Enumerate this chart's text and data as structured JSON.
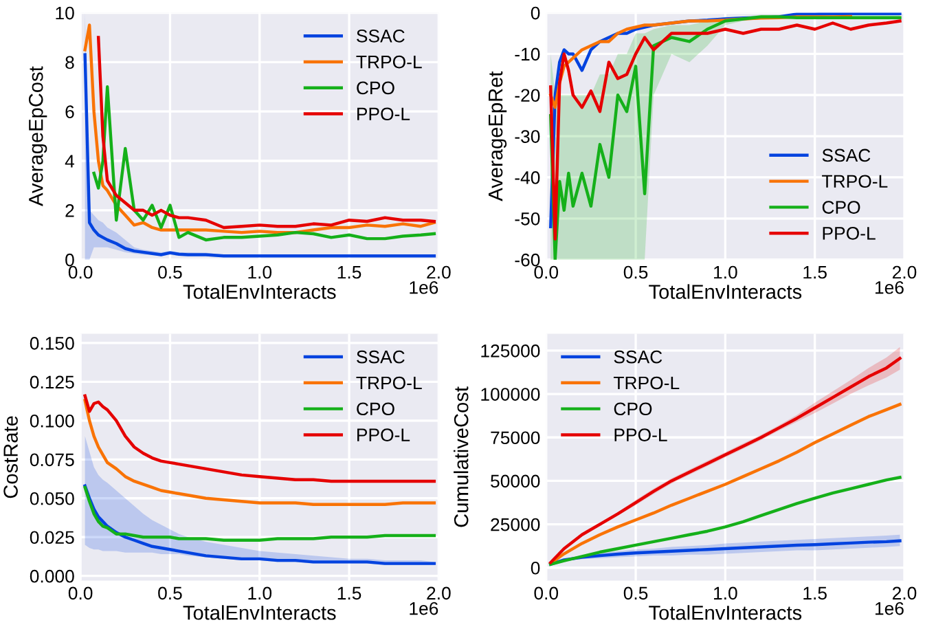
{
  "chart_data": [
    {
      "type": "line",
      "xlabel": "TotalEnvInteracts",
      "ylabel": "AverageEpCost",
      "annotations": [
        "1e6"
      ],
      "x": [
        0.025,
        0.05,
        0.075,
        0.1,
        0.125,
        0.15,
        0.2,
        0.25,
        0.3,
        0.35,
        0.4,
        0.45,
        0.5,
        0.55,
        0.6,
        0.7,
        0.8,
        0.9,
        1.0,
        1.1,
        1.2,
        1.3,
        1.4,
        1.5,
        1.6,
        1.7,
        1.8,
        1.9,
        1.975
      ],
      "xlim": [
        0,
        2.0
      ],
      "xticks": [
        {
          "value": 0,
          "label": "0.0"
        },
        {
          "value": 0.5,
          "label": "0.5"
        },
        {
          "value": 1,
          "label": "1.0"
        },
        {
          "value": 1.5,
          "label": "1.5"
        },
        {
          "value": 2,
          "label": "2.0"
        }
      ],
      "ylim": [
        0,
        10
      ],
      "yticks": [
        0,
        2,
        4,
        6,
        8,
        10
      ],
      "grid": true,
      "legend": "top right",
      "series": [
        {
          "name": "SSAC",
          "color": "#0343df",
          "values": [
            8.3,
            1.5,
            1.2,
            1.0,
            0.9,
            0.8,
            0.65,
            0.45,
            0.35,
            0.3,
            0.25,
            0.2,
            0.28,
            0.22,
            0.2,
            0.2,
            0.15,
            0.15,
            0.15,
            0.15,
            0.15,
            0.15,
            0.15,
            0.15,
            0.15,
            0.15,
            0.15,
            0.15,
            0.15
          ],
          "lower": [
            0,
            0,
            0.5,
            0.5,
            0.5,
            0.5,
            0.4,
            0.3,
            0.25,
            0.2,
            0.2,
            0.15,
            0.2,
            0.15,
            0.15,
            0.15,
            0.1,
            0.1,
            0.1,
            0.1,
            0.1,
            0.1,
            0.1,
            0.1,
            0.1,
            0.1,
            0.1,
            0.1,
            0.1
          ],
          "upper": [
            10,
            2,
            1.8,
            1.6,
            1.5,
            1.3,
            1.1,
            0.8,
            0.5,
            0.4,
            0.35,
            0.3,
            0.35,
            0.3,
            0.3,
            0.28,
            0.2,
            0.2,
            0.2,
            0.2,
            0.2,
            0.2,
            0.2,
            0.2,
            0.2,
            0.2,
            0.2,
            0.2,
            0.2
          ]
        },
        {
          "name": "TRPO-L",
          "color": "#f97306",
          "values": [
            8.5,
            9.5,
            6.0,
            4.0,
            3.0,
            2.8,
            2.2,
            1.8,
            1.4,
            1.5,
            1.3,
            1.2,
            1.2,
            1.2,
            1.2,
            1.2,
            1.15,
            1.1,
            1.15,
            1.1,
            1.1,
            1.2,
            1.3,
            1.3,
            1.4,
            1.35,
            1.45,
            1.35,
            1.5
          ]
        },
        {
          "name": "CPO",
          "color": "#15b01a",
          "values": [
            null,
            null,
            3.5,
            2.9,
            4.0,
            7.0,
            1.6,
            4.5,
            2.0,
            1.6,
            2.2,
            1.3,
            2.2,
            0.9,
            1.1,
            0.8,
            0.9,
            0.9,
            0.95,
            1.0,
            1.1,
            1.05,
            0.9,
            1.0,
            0.85,
            0.85,
            0.95,
            1.0,
            1.05
          ]
        },
        {
          "name": "PPO-L",
          "color": "#e50000",
          "values": [
            null,
            null,
            null,
            9.0,
            5.0,
            3.2,
            2.6,
            2.3,
            2.0,
            2.0,
            1.8,
            2.0,
            1.8,
            1.7,
            1.7,
            1.6,
            1.3,
            1.35,
            1.4,
            1.35,
            1.35,
            1.45,
            1.4,
            1.6,
            1.55,
            1.7,
            1.6,
            1.6,
            1.55
          ]
        }
      ]
    },
    {
      "type": "line",
      "xlabel": "TotalEnvInteracts",
      "ylabel": "AverageEpRet",
      "annotations": [
        "1e6"
      ],
      "x": [
        0.025,
        0.05,
        0.075,
        0.1,
        0.125,
        0.15,
        0.2,
        0.25,
        0.3,
        0.35,
        0.4,
        0.45,
        0.5,
        0.55,
        0.6,
        0.7,
        0.8,
        0.9,
        1.0,
        1.1,
        1.2,
        1.3,
        1.4,
        1.5,
        1.6,
        1.7,
        1.8,
        1.9,
        1.975
      ],
      "xlim": [
        0,
        2.0
      ],
      "xticks": [
        {
          "value": 0,
          "label": "0.0"
        },
        {
          "value": 0.5,
          "label": "0.5"
        },
        {
          "value": 1,
          "label": "1.0"
        },
        {
          "value": 1.5,
          "label": "1.5"
        },
        {
          "value": 2,
          "label": "2.0"
        }
      ],
      "ylim": [
        -60,
        0
      ],
      "yticks": [
        -60,
        -50,
        -40,
        -30,
        -20,
        -10,
        0
      ],
      "grid": true,
      "legend": "bottom right",
      "series": [
        {
          "name": "SSAC",
          "color": "#0343df",
          "values": [
            -52,
            -20,
            -12,
            -9,
            -10,
            -10,
            -14,
            -9,
            -7,
            -6,
            -5,
            -5,
            -4,
            -3.5,
            -3,
            -2.5,
            -2,
            -1.8,
            -1.5,
            -1.3,
            -1.2,
            -1,
            -0.3,
            -0.3,
            -0.2,
            -0.2,
            -0.2,
            -0.2,
            -0.2
          ]
        },
        {
          "name": "TRPO-L",
          "color": "#f97306",
          "values": [
            -20,
            -23,
            -17,
            -13,
            -12,
            -11,
            -9,
            -8,
            -7,
            -7,
            -5,
            -4,
            -3.5,
            -3,
            -3,
            -2.5,
            -2,
            -2,
            -1.8,
            -1.5,
            -1.3,
            -1.2,
            -1,
            -1,
            -1,
            -0.9,
            null,
            null,
            null
          ]
        },
        {
          "name": "CPO",
          "color": "#15b01a",
          "values": [
            -25,
            -60,
            -41,
            -48,
            -39,
            -47,
            -39,
            -47,
            -32,
            -40,
            -20,
            -24,
            -13,
            -44,
            -8,
            -6,
            -7,
            -4,
            -2,
            -1.5,
            -1,
            -1,
            -1.2,
            -1.2,
            -1.2,
            -1.2,
            -1.2,
            -1.2,
            -1.2
          ],
          "lower": [
            -60,
            -60,
            -60,
            -60,
            -60,
            -60,
            -60,
            -60,
            -60,
            -60,
            -60,
            -60,
            -60,
            -60,
            -20,
            -10,
            -12,
            -8,
            -3,
            -2,
            -1.5,
            -1.2,
            -1.2,
            -1,
            -1,
            -1,
            -1,
            -1,
            -1
          ],
          "upper": [
            -10,
            -20,
            -20,
            -20,
            -20,
            -20,
            -20,
            -20,
            -15,
            -15,
            -10,
            -10,
            -5,
            -5,
            -4,
            -3,
            -3,
            -2,
            -1,
            -1,
            -0.5,
            -0.5,
            -0.5,
            -0.5,
            -0.5,
            -0.5,
            -0.5,
            -0.5,
            -0.5
          ]
        },
        {
          "name": "PPO-L",
          "color": "#e50000",
          "values": [
            -18,
            -55,
            -17,
            -10,
            -14,
            -20,
            -23,
            -19,
            -24,
            -12,
            -16,
            -15,
            -10,
            -6,
            -9,
            -5,
            -5,
            -5,
            -4,
            -5,
            -4,
            -4,
            -3,
            -4,
            -2.5,
            -4,
            -3,
            -2.5,
            -2
          ]
        }
      ]
    },
    {
      "type": "line",
      "xlabel": "TotalEnvInteracts",
      "ylabel": "CostRate",
      "annotations": [
        "1e6"
      ],
      "x": [
        0.025,
        0.05,
        0.075,
        0.1,
        0.125,
        0.15,
        0.2,
        0.25,
        0.3,
        0.35,
        0.4,
        0.45,
        0.5,
        0.55,
        0.6,
        0.7,
        0.8,
        0.9,
        1.0,
        1.1,
        1.2,
        1.3,
        1.4,
        1.5,
        1.6,
        1.7,
        1.8,
        1.9,
        1.975
      ],
      "xlim": [
        0,
        2.0
      ],
      "xticks": [
        {
          "value": 0,
          "label": "0.0"
        },
        {
          "value": 0.5,
          "label": "0.5"
        },
        {
          "value": 1,
          "label": "1.0"
        },
        {
          "value": 1.5,
          "label": "1.5"
        },
        {
          "value": 2,
          "label": "2.0"
        }
      ],
      "ylim": [
        -0.003,
        0.156
      ],
      "yticks": [
        {
          "value": 0,
          "label": "0.000"
        },
        {
          "value": 0.025,
          "label": "0.025"
        },
        {
          "value": 0.05,
          "label": "0.050"
        },
        {
          "value": 0.075,
          "label": "0.075"
        },
        {
          "value": 0.1,
          "label": "0.100"
        },
        {
          "value": 0.125,
          "label": "0.125"
        },
        {
          "value": 0.15,
          "label": "0.150"
        }
      ],
      "grid": true,
      "legend": "top right",
      "series": [
        {
          "name": "SSAC",
          "color": "#0343df",
          "values": [
            0.058,
            0.05,
            0.043,
            0.038,
            0.035,
            0.032,
            0.028,
            0.025,
            0.023,
            0.021,
            0.019,
            0.018,
            0.017,
            0.016,
            0.015,
            0.013,
            0.012,
            0.011,
            0.011,
            0.01,
            0.01,
            0.009,
            0.009,
            0.009,
            0.009,
            0.008,
            0.008,
            0.008,
            0.008
          ],
          "lower": [
            0.02,
            0.018,
            0.017,
            0.017,
            0.016,
            0.016,
            0.016,
            0.015,
            0.015,
            0.015,
            0.015,
            0.014,
            0.014,
            0.014,
            0.013,
            0.012,
            0.011,
            0.01,
            0.01,
            0.009,
            0.009,
            0.008,
            0.008,
            0.008,
            0.008,
            0.007,
            0.007,
            0.007,
            0.007
          ],
          "upper": [
            0.09,
            0.08,
            0.07,
            0.065,
            0.062,
            0.06,
            0.055,
            0.05,
            0.045,
            0.04,
            0.036,
            0.033,
            0.03,
            0.027,
            0.025,
            0.022,
            0.02,
            0.018,
            0.016,
            0.015,
            0.014,
            0.013,
            0.012,
            0.011,
            0.011,
            0.01,
            0.01,
            0.01,
            0.009
          ]
        },
        {
          "name": "TRPO-L",
          "color": "#f97306",
          "values": [
            0.113,
            0.1,
            0.09,
            0.083,
            0.078,
            0.073,
            0.069,
            0.064,
            0.061,
            0.059,
            0.057,
            0.055,
            0.054,
            0.053,
            0.052,
            0.05,
            0.049,
            0.048,
            0.047,
            0.047,
            0.047,
            0.046,
            0.046,
            0.046,
            0.046,
            0.046,
            0.047,
            0.047,
            0.047
          ]
        },
        {
          "name": "CPO",
          "color": "#15b01a",
          "values": [
            0.057,
            0.048,
            0.04,
            0.035,
            0.032,
            0.031,
            0.027,
            0.027,
            0.026,
            0.025,
            0.025,
            0.025,
            0.025,
            0.024,
            0.024,
            0.024,
            0.023,
            0.023,
            0.023,
            0.024,
            0.024,
            0.024,
            0.025,
            0.025,
            0.025,
            0.026,
            0.026,
            0.026,
            0.026
          ]
        },
        {
          "name": "PPO-L",
          "color": "#e50000",
          "values": [
            0.116,
            0.106,
            0.111,
            0.112,
            0.109,
            0.107,
            0.1,
            0.09,
            0.083,
            0.079,
            0.076,
            0.074,
            0.073,
            0.072,
            0.071,
            0.069,
            0.067,
            0.065,
            0.064,
            0.063,
            0.062,
            0.062,
            0.061,
            0.061,
            0.061,
            0.061,
            0.061,
            0.061,
            0.061
          ]
        }
      ]
    },
    {
      "type": "line",
      "xlabel": "TotalEnvInteracts",
      "ylabel": "CumulativeCost",
      "annotations": [
        "1e6"
      ],
      "x": [
        0.025,
        0.1,
        0.2,
        0.3,
        0.4,
        0.5,
        0.6,
        0.7,
        0.8,
        0.9,
        1.0,
        1.1,
        1.2,
        1.3,
        1.4,
        1.5,
        1.6,
        1.7,
        1.8,
        1.9,
        1.975
      ],
      "xlim": [
        0,
        2.0
      ],
      "xticks": [
        {
          "value": 0,
          "label": "0.0"
        },
        {
          "value": 0.5,
          "label": "0.5"
        },
        {
          "value": 1,
          "label": "1.0"
        },
        {
          "value": 1.5,
          "label": "1.5"
        },
        {
          "value": 2,
          "label": "2.0"
        }
      ],
      "ylim": [
        -7400,
        134700
      ],
      "yticks": [
        0,
        25000,
        50000,
        75000,
        100000,
        125000
      ],
      "grid": true,
      "legend": "top left",
      "series": [
        {
          "name": "SSAC",
          "color": "#0343df",
          "values": [
            2000,
            4500,
            6000,
            7000,
            7800,
            8500,
            9000,
            9500,
            10000,
            10500,
            11000,
            11500,
            12000,
            12500,
            13000,
            13300,
            13800,
            14200,
            14700,
            15000,
            15500
          ],
          "lower": [
            2000,
            4000,
            5000,
            5500,
            6000,
            6500,
            7000,
            7000,
            7500,
            7500,
            8000,
            8500,
            9000,
            9500,
            10000,
            10000,
            10500,
            11000,
            11500,
            12000,
            12500
          ],
          "upper": [
            2000,
            5000,
            7000,
            8500,
            9500,
            10500,
            11000,
            12000,
            12500,
            13000,
            14000,
            14500,
            15000,
            15500,
            16000,
            16500,
            17000,
            17500,
            18000,
            18500,
            19000
          ]
        },
        {
          "name": "TRPO-L",
          "color": "#f97306",
          "values": [
            2500,
            8000,
            14000,
            19000,
            23500,
            27500,
            31500,
            36000,
            40000,
            44000,
            48000,
            52500,
            57000,
            61500,
            66500,
            72000,
            77000,
            82000,
            87000,
            91000,
            94000
          ]
        },
        {
          "name": "CPO",
          "color": "#15b01a",
          "values": [
            2000,
            4000,
            6500,
            9000,
            11000,
            13000,
            15000,
            17000,
            19000,
            21000,
            23500,
            26500,
            30000,
            33500,
            37000,
            40000,
            43000,
            45500,
            48000,
            50500,
            52000
          ]
        },
        {
          "name": "PPO-L",
          "color": "#e50000",
          "values": [
            3000,
            11000,
            19000,
            25000,
            31000,
            37500,
            44000,
            50000,
            55000,
            60000,
            65000,
            70000,
            75000,
            80500,
            86000,
            92000,
            98000,
            104000,
            110000,
            115000,
            120500
          ],
          "lower": [
            3000,
            10500,
            18000,
            24000,
            30000,
            36000,
            42500,
            48500,
            53500,
            58500,
            63500,
            68500,
            73500,
            79000,
            84000,
            89000,
            94500,
            100000,
            105000,
            109500,
            114000
          ],
          "upper": [
            3000,
            11500,
            20000,
            26000,
            32000,
            39000,
            45500,
            51500,
            56500,
            61500,
            66500,
            71500,
            76500,
            82000,
            88000,
            95000,
            101500,
            108000,
            115000,
            121000,
            127000
          ]
        }
      ]
    }
  ]
}
